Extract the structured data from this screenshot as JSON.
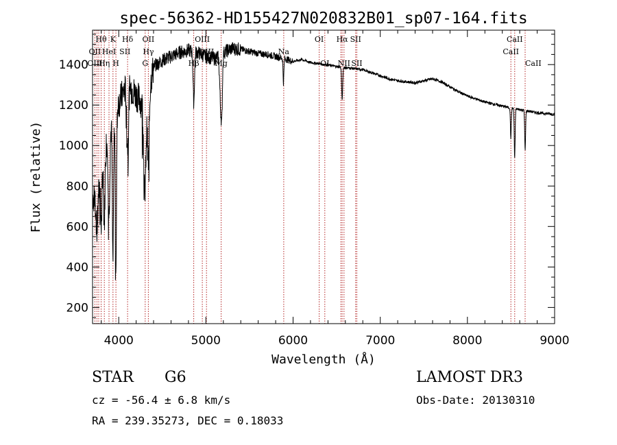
{
  "chart_data": {
    "type": "line",
    "title": "spec-56362-HD155427N020832B01_sp07-164.fits",
    "xlabel": "Wavelength (Å)",
    "ylabel": "Flux (relative)",
    "xlim": [
      3700,
      9000
    ],
    "ylim": [
      120,
      1570
    ],
    "xticks": [
      4000,
      5000,
      6000,
      7000,
      8000,
      9000
    ],
    "yticks": [
      200,
      400,
      600,
      800,
      1000,
      1200,
      1400
    ],
    "grid": false,
    "series": [
      {
        "name": "spectrum",
        "continuum": [
          [
            3700,
            750
          ],
          [
            3760,
            720
          ],
          [
            3800,
            900
          ],
          [
            3850,
            1000
          ],
          [
            3900,
            1080
          ],
          [
            3950,
            1150
          ],
          [
            4000,
            1210
          ],
          [
            4050,
            1260
          ],
          [
            4100,
            1300
          ],
          [
            4150,
            1280
          ],
          [
            4200,
            1250
          ],
          [
            4250,
            1220
          ],
          [
            4300,
            1190
          ],
          [
            4350,
            1280
          ],
          [
            4400,
            1390
          ],
          [
            4500,
            1420
          ],
          [
            4600,
            1440
          ],
          [
            4700,
            1460
          ],
          [
            4800,
            1470
          ],
          [
            4900,
            1460
          ],
          [
            5000,
            1440
          ],
          [
            5100,
            1430
          ],
          [
            5200,
            1460
          ],
          [
            5300,
            1480
          ],
          [
            5400,
            1475
          ],
          [
            5500,
            1465
          ],
          [
            5600,
            1455
          ],
          [
            5700,
            1450
          ],
          [
            5800,
            1440
          ],
          [
            5900,
            1430
          ],
          [
            6000,
            1415
          ],
          [
            6100,
            1425
          ],
          [
            6200,
            1410
          ],
          [
            6300,
            1405
          ],
          [
            6400,
            1398
          ],
          [
            6500,
            1390
          ],
          [
            6600,
            1385
          ],
          [
            6700,
            1380
          ],
          [
            6800,
            1375
          ],
          [
            6900,
            1360
          ],
          [
            7000,
            1345
          ],
          [
            7100,
            1330
          ],
          [
            7200,
            1320
          ],
          [
            7300,
            1315
          ],
          [
            7400,
            1310
          ],
          [
            7500,
            1320
          ],
          [
            7600,
            1330
          ],
          [
            7700,
            1315
          ],
          [
            7800,
            1290
          ],
          [
            7900,
            1265
          ],
          [
            8000,
            1245
          ],
          [
            8100,
            1230
          ],
          [
            8200,
            1215
          ],
          [
            8300,
            1205
          ],
          [
            8400,
            1195
          ],
          [
            8500,
            1185
          ],
          [
            8600,
            1178
          ],
          [
            8700,
            1170
          ],
          [
            8800,
            1162
          ],
          [
            8900,
            1158
          ],
          [
            9000,
            1155
          ]
        ],
        "absorption_lines": [
          [
            3750,
            150,
            8
          ],
          [
            3800,
            300,
            8
          ],
          [
            3835,
            350,
            8
          ],
          [
            3889,
            400,
            9
          ],
          [
            3934,
            700,
            7
          ],
          [
            3968,
            750,
            7
          ],
          [
            4102,
            300,
            10
          ],
          [
            4300,
            450,
            12
          ],
          [
            4340,
            350,
            10
          ],
          [
            4861,
            250,
            8
          ],
          [
            5172,
            280,
            12
          ],
          [
            5184,
            150,
            6
          ],
          [
            5890,
            120,
            5
          ],
          [
            6563,
            160,
            6
          ],
          [
            8498,
            150,
            5
          ],
          [
            8542,
            250,
            5
          ],
          [
            8662,
            200,
            5
          ]
        ]
      }
    ],
    "marked_lines": [
      {
        "name": "Hθ",
        "x": 3798,
        "row": 0
      },
      {
        "name": "K",
        "x": 3934,
        "row": 0
      },
      {
        "name": "Hδ",
        "x": 4102,
        "row": 0
      },
      {
        "name": "OII",
        "x": 4340,
        "row": 0
      },
      {
        "name": "OIII",
        "x": 4959,
        "row": 0
      },
      {
        "name": "OI",
        "x": 6300,
        "row": 0
      },
      {
        "name": "Hα",
        "x": 6563,
        "row": 0
      },
      {
        "name": "SII",
        "x": 6717,
        "row": 0
      },
      {
        "name": "CaII",
        "x": 8542,
        "row": 0
      },
      {
        "name": "OII",
        "x": 3727,
        "row": 1
      },
      {
        "name": "HeI",
        "x": 3889,
        "row": 1
      },
      {
        "name": "SII",
        "x": 4072,
        "row": 1
      },
      {
        "name": "Hγ",
        "x": 4340,
        "row": 1
      },
      {
        "name": "OIII",
        "x": 5007,
        "row": 1
      },
      {
        "name": "Na",
        "x": 5893,
        "row": 1
      },
      {
        "name": "CaII",
        "x": 8498,
        "row": 1
      },
      {
        "name": "OIII",
        "x": 3727,
        "row": 2
      },
      {
        "name": "Hη",
        "x": 3835,
        "row": 2
      },
      {
        "name": "H",
        "x": 3968,
        "row": 2
      },
      {
        "name": "G",
        "x": 4304,
        "row": 2
      },
      {
        "name": "Hβ",
        "x": 4861,
        "row": 2
      },
      {
        "name": "Mg",
        "x": 5175,
        "row": 2
      },
      {
        "name": "OI",
        "x": 6364,
        "row": 2
      },
      {
        "name": "NII",
        "x": 6584,
        "row": 2
      },
      {
        "name": "SII",
        "x": 6731,
        "row": 2
      },
      {
        "name": "CaII",
        "x": 8662,
        "row": 3
      }
    ],
    "line_positions": [
      3727,
      3750,
      3771,
      3798,
      3835,
      3889,
      3934,
      3968,
      4102,
      4304,
      4340,
      4861,
      4959,
      5007,
      5175,
      5893,
      6300,
      6364,
      6548,
      6563,
      6584,
      6717,
      6731,
      8498,
      8542,
      8662
    ],
    "line_color": "#b22222"
  },
  "info": {
    "object_type": "STAR",
    "subclass": "G6",
    "survey": "LAMOST DR3",
    "cz": "cz = -56.4 ± 6.8 km/s",
    "obs_date": "Obs-Date: 20130310",
    "coords": "RA = 239.35273, DEC =   0.18033"
  }
}
